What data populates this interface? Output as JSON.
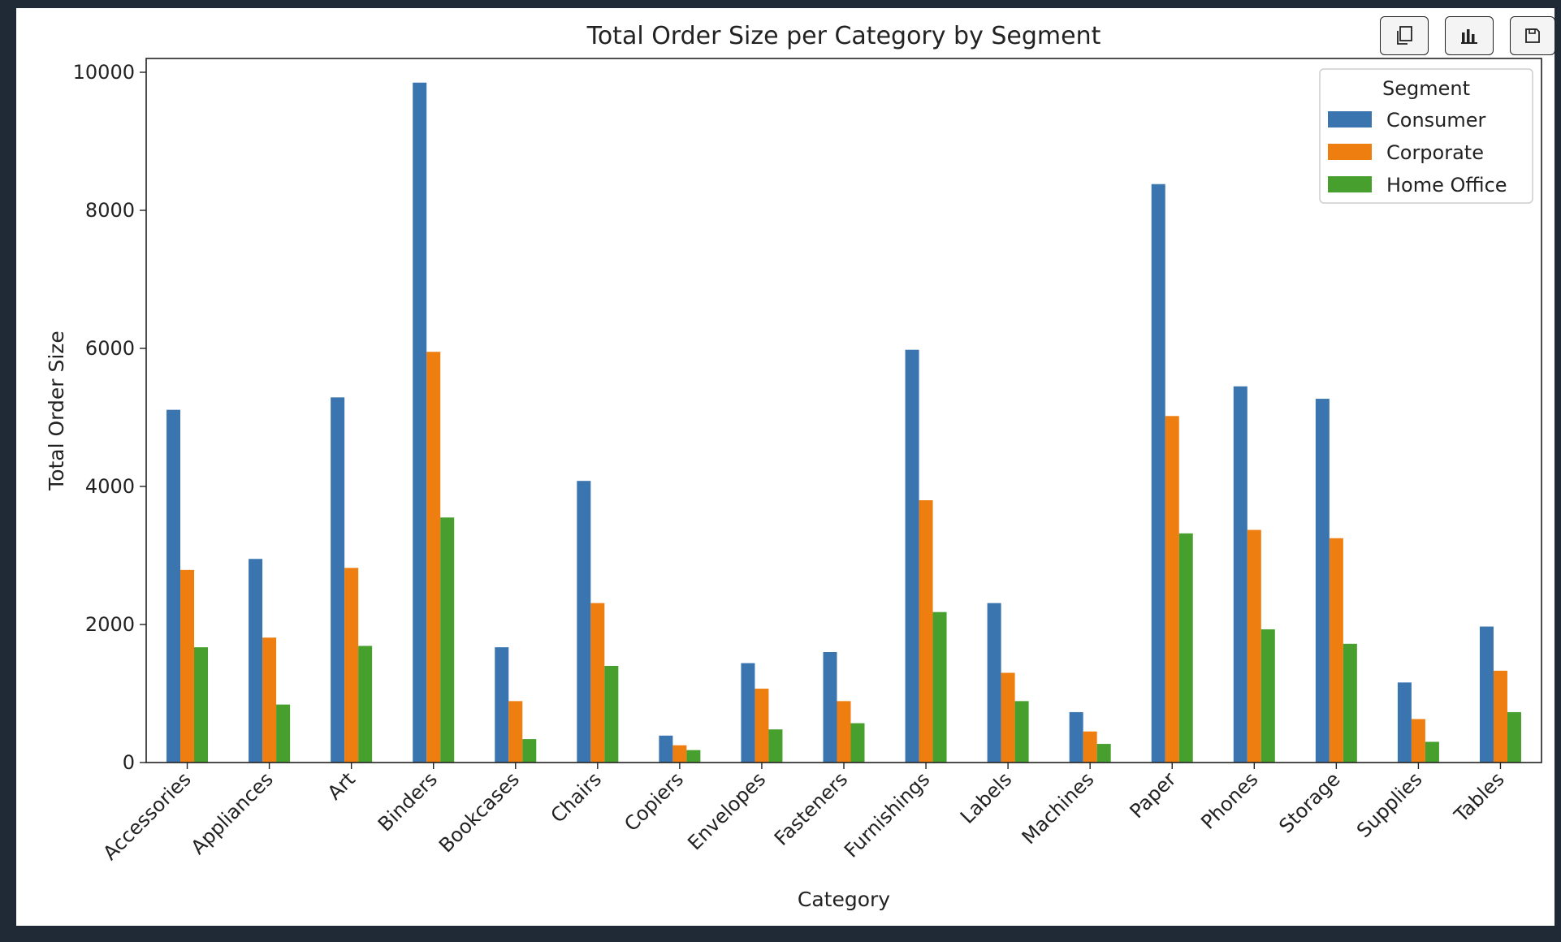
{
  "toolbar": {
    "buttons": [
      {
        "name": "copy-button",
        "icon": "copy-icon"
      },
      {
        "name": "chart-button",
        "icon": "bar-chart-icon"
      },
      {
        "name": "save-button",
        "icon": "floppy-disk-icon"
      }
    ]
  },
  "chart_data": {
    "type": "bar",
    "title": "Total Order Size per Category by Segment",
    "xlabel": "Category",
    "ylabel": "Total Order Size",
    "ylim": [
      0,
      10200
    ],
    "yticks": [
      0,
      2000,
      4000,
      6000,
      8000,
      10000
    ],
    "grid": false,
    "legend": {
      "title": "Segment",
      "placement": "top-right"
    },
    "categories": [
      "Accessories",
      "Appliances",
      "Art",
      "Binders",
      "Bookcases",
      "Chairs",
      "Copiers",
      "Envelopes",
      "Fasteners",
      "Furnishings",
      "Labels",
      "Machines",
      "Paper",
      "Phones",
      "Storage",
      "Supplies",
      "Tables"
    ],
    "series": [
      {
        "name": "Consumer",
        "color": "#3a75b0",
        "values": [
          5110,
          2950,
          5290,
          9850,
          1670,
          4080,
          390,
          1440,
          1600,
          5980,
          2310,
          730,
          8380,
          5450,
          5270,
          1160,
          1970
        ]
      },
      {
        "name": "Corporate",
        "color": "#ef7e11",
        "values": [
          2790,
          1810,
          2820,
          5950,
          890,
          2310,
          250,
          1070,
          890,
          3800,
          1300,
          450,
          5020,
          3370,
          3250,
          630,
          1330
        ]
      },
      {
        "name": "Home Office",
        "color": "#47a02e",
        "values": [
          1670,
          840,
          1690,
          3550,
          340,
          1400,
          180,
          480,
          570,
          2180,
          890,
          270,
          3320,
          1930,
          1720,
          300,
          730
        ]
      }
    ]
  }
}
